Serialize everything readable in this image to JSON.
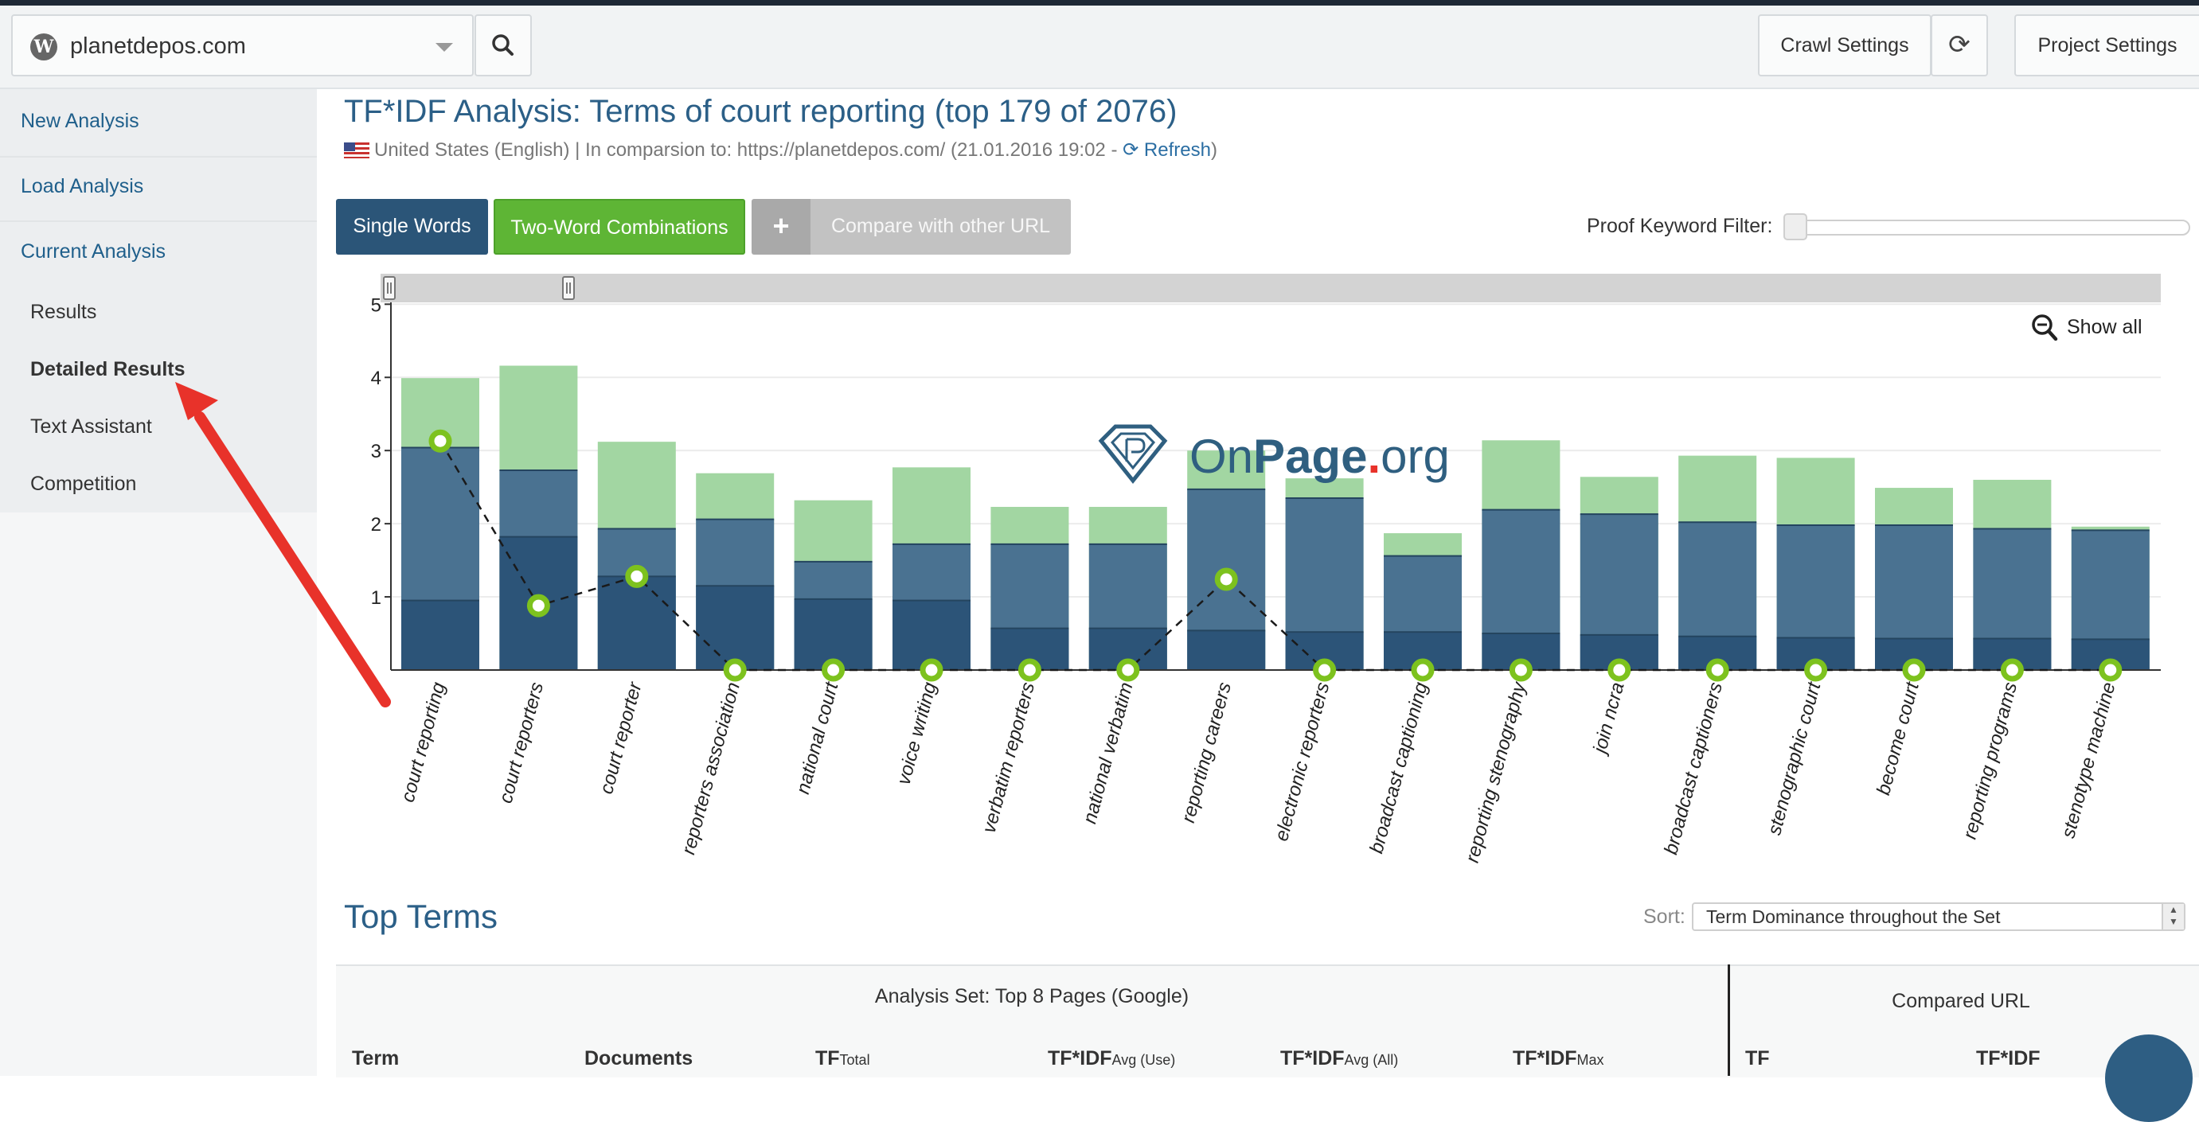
{
  "topbar": {
    "project": "planetdepos.com",
    "crawl_settings": "Crawl Settings",
    "project_settings": "Project Settings"
  },
  "sidebar": {
    "new_analysis": "New Analysis",
    "load_analysis": "Load Analysis",
    "current_analysis": "Current Analysis",
    "results": "Results",
    "detailed_results": "Detailed Results",
    "text_assistant": "Text Assistant",
    "competition": "Competition"
  },
  "header": {
    "title": "TF*IDF Analysis: Terms of court reporting (top 179 of 2076)",
    "country": "United States (English)",
    "comparison": "| In comparsion to: https://planetdepos.com/ (21.01.2016 19:02 -",
    "refresh": "Refresh",
    "close_paren": ")"
  },
  "toolbar": {
    "single_words": "Single Words",
    "two_word": "Two-Word Combinations",
    "compare_plus": "+",
    "compare_url": "Compare with other URL",
    "proof_filter": "Proof Keyword Filter:"
  },
  "chart_data": {
    "type": "bar",
    "categories": [
      "court reporting",
      "court reporters",
      "court reporter",
      "reporters association",
      "national court",
      "voice writing",
      "verbatim reporters",
      "national verbatim",
      "reporting careers",
      "electronic reporters",
      "broadcast captioning",
      "reporting stenography",
      "join ncra",
      "broadcast captioners",
      "stenographic court",
      "become court",
      "reporting programs",
      "stenotype machine"
    ],
    "series": [
      {
        "values": [
          0.95,
          1.82,
          1.28,
          1.15,
          0.97,
          0.95,
          0.57,
          0.57,
          0.54,
          0.52,
          0.52,
          0.5,
          0.48,
          0.46,
          0.44,
          0.43,
          0.43,
          0.42
        ]
      },
      {
        "values": [
          3.04,
          2.73,
          1.93,
          2.06,
          1.48,
          1.72,
          1.72,
          1.72,
          2.47,
          2.35,
          1.56,
          2.19,
          2.13,
          2.02,
          1.98,
          1.98,
          1.93,
          1.91
        ]
      },
      {
        "values": [
          3.99,
          4.16,
          3.12,
          2.69,
          2.32,
          2.77,
          2.23,
          2.23,
          3.0,
          2.62,
          1.87,
          3.14,
          2.64,
          2.93,
          2.9,
          2.49,
          2.6,
          1.96
        ]
      },
      {
        "type": "line",
        "values": [
          3.13,
          0.88,
          1.28,
          0,
          0,
          0,
          0,
          0,
          1.24,
          0,
          0,
          0,
          0,
          0,
          0,
          0,
          0,
          0
        ]
      }
    ],
    "ylim": [
      0,
      5
    ],
    "yticks": [
      1,
      2,
      3,
      4,
      5
    ],
    "colors": {
      "light": "#a2d6a2",
      "mid": "#4a7291",
      "dark": "#2c5478",
      "line_point": "#7dc21e"
    },
    "show_all": "Show all",
    "watermark": "OnPage.org"
  },
  "top_terms": {
    "title": "Top Terms",
    "sort_label": "Sort:",
    "sort_value": "Term Dominance throughout the Set",
    "analysis_set": "Analysis Set: Top 8 Pages (Google)",
    "compared_url": "Compared URL",
    "columns": {
      "term": "Term",
      "documents": "Documents",
      "tf": "TF",
      "tf_sub": "Total",
      "tfidf": "TF*IDF",
      "avg_use": "Avg (Use)",
      "avg_all": "Avg (All)",
      "max": "Max",
      "c_tf": "TF",
      "c_tfidf": "TF*IDF"
    }
  }
}
